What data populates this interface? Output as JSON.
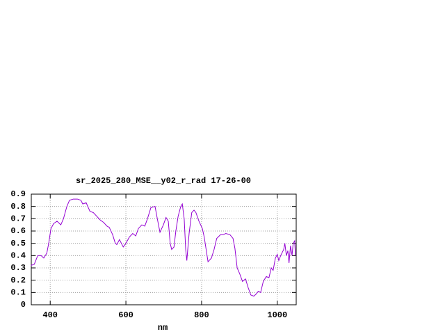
{
  "chart_data": {
    "type": "line",
    "title": "sr_2025_280_MSE__y02_r_rad 17-26-00",
    "xlabel": "nm",
    "x": [
      349,
      358,
      367,
      376,
      383,
      391,
      396,
      402,
      409,
      418,
      428,
      435,
      444,
      451,
      461,
      472,
      481,
      486,
      495,
      505,
      514,
      523,
      532,
      541,
      550,
      556,
      565,
      572,
      576,
      583,
      593,
      600,
      609,
      618,
      626,
      633,
      642,
      650,
      657,
      666,
      677,
      683,
      690,
      699,
      706,
      712,
      717,
      721,
      727,
      732,
      738,
      745,
      749,
      754,
      758,
      761,
      767,
      774,
      780,
      785,
      793,
      802,
      807,
      817,
      826,
      833,
      840,
      850,
      857,
      864,
      875,
      883,
      888,
      894,
      901,
      908,
      916,
      923,
      930,
      938,
      945,
      950,
      956,
      963,
      971,
      978,
      984,
      989,
      995,
      1000,
      1004,
      1009,
      1017,
      1020,
      1024,
      1028,
      1031,
      1035,
      1039,
      1042,
      1046,
      1048
    ],
    "series": [
      {
        "name": "sr_2025_280_MSE__y02_r_rad",
        "color": "#9400d3",
        "values": [
          0.32,
          0.33,
          0.4,
          0.4,
          0.38,
          0.42,
          0.5,
          0.62,
          0.66,
          0.68,
          0.65,
          0.7,
          0.8,
          0.85,
          0.86,
          0.86,
          0.85,
          0.82,
          0.83,
          0.76,
          0.75,
          0.72,
          0.69,
          0.67,
          0.64,
          0.63,
          0.57,
          0.5,
          0.49,
          0.53,
          0.47,
          0.5,
          0.55,
          0.58,
          0.56,
          0.62,
          0.65,
          0.64,
          0.7,
          0.79,
          0.8,
          0.7,
          0.59,
          0.65,
          0.71,
          0.68,
          0.5,
          0.45,
          0.47,
          0.6,
          0.72,
          0.8,
          0.82,
          0.7,
          0.45,
          0.36,
          0.58,
          0.75,
          0.77,
          0.75,
          0.68,
          0.62,
          0.55,
          0.35,
          0.38,
          0.45,
          0.54,
          0.57,
          0.57,
          0.58,
          0.57,
          0.54,
          0.46,
          0.3,
          0.25,
          0.19,
          0.21,
          0.14,
          0.08,
          0.07,
          0.09,
          0.11,
          0.1,
          0.19,
          0.23,
          0.22,
          0.3,
          0.28,
          0.38,
          0.41,
          0.36,
          0.4,
          0.45,
          0.5,
          0.4,
          0.44,
          0.34,
          0.48,
          0.4,
          0.5,
          0.52,
          0.4
        ]
      }
    ],
    "xlim": [
      350,
      1050
    ],
    "xticks": [
      400,
      600,
      800,
      1000
    ],
    "ylim": [
      0,
      0.9
    ],
    "yticks": [
      0,
      0.1,
      0.2,
      0.3,
      0.4,
      0.5,
      0.6,
      0.7,
      0.8,
      0.9
    ],
    "grid": true
  }
}
